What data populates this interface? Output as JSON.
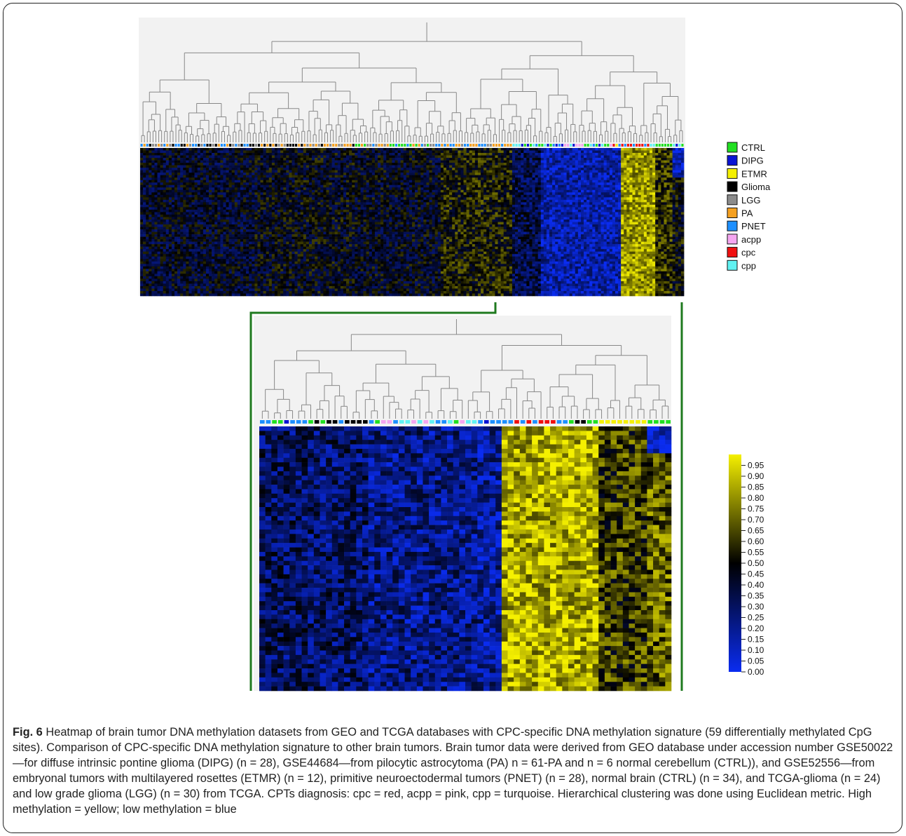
{
  "chart_data": [
    {
      "type": "heatmap",
      "panel": "overview",
      "legend": [
        {
          "label": "CTRL",
          "color": "#22e022"
        },
        {
          "label": "DIPG",
          "color": "#0a14d4"
        },
        {
          "label": "ETMR",
          "color": "#f5f000"
        },
        {
          "label": "Glioma",
          "color": "#000000"
        },
        {
          "label": "LGG",
          "color": "#8c8c8c"
        },
        {
          "label": "PA",
          "color": "#f5a020"
        },
        {
          "label": "PNET",
          "color": "#1e90ff"
        },
        {
          "label": "acpp",
          "color": "#f5a6f0"
        },
        {
          "label": "cpc",
          "color": "#f01010"
        },
        {
          "label": "cpp",
          "color": "#60f2f2"
        }
      ],
      "zlim": [
        0,
        1
      ],
      "colorscale": [
        "#0a2cf0",
        "#000000",
        "#f5f000"
      ]
    },
    {
      "type": "heatmap",
      "panel": "zoomed subtree",
      "colorbar_ticks": [
        "0.95",
        "0.90",
        "0.85",
        "0.80",
        "0.75",
        "0.70",
        "0.65",
        "0.60",
        "0.55",
        "0.50",
        "0.45",
        "0.40",
        "0.35",
        "0.30",
        "0.25",
        "0.20",
        "0.15",
        "0.10",
        "0.05",
        "0.00"
      ],
      "zlim": [
        0,
        1
      ],
      "colorscale": [
        "#0a2cf0",
        "#000000",
        "#f5f000"
      ]
    }
  ],
  "caption": {
    "label": "Fig. 6",
    "text": " Heatmap of brain tumor DNA methylation datasets from GEO and TCGA databases with CPC-specific DNA methylation signature (59 differentially methylated CpG sites). Comparison of CPC-specific DNA methylation signature to other brain tumors. Brain tumor data were derived from GEO database under accession number GSE50022—for diffuse intrinsic pontine glioma (DIPG) (n = 28), GSE44684—from pilocytic astrocytoma (PA) n = 61-PA and n = 6 normal cerebellum (CTRL)), and GSE52556—from embryonal tumors with multilayered rosettes (ETMR) (n = 12), primitive neuroectodermal tumors (PNET) (n = 28), normal brain (CTRL) (n = 34), and TCGA-glioma (n = 24) and low grade glioma (LGG) (n = 30) from TCGA. CPTs diagnosis: cpc = red, acpp = pink, cpp = turquoise. Hierarchical clustering was done using Euclidean metric. High methylation = yellow; low methylation = blue"
  }
}
